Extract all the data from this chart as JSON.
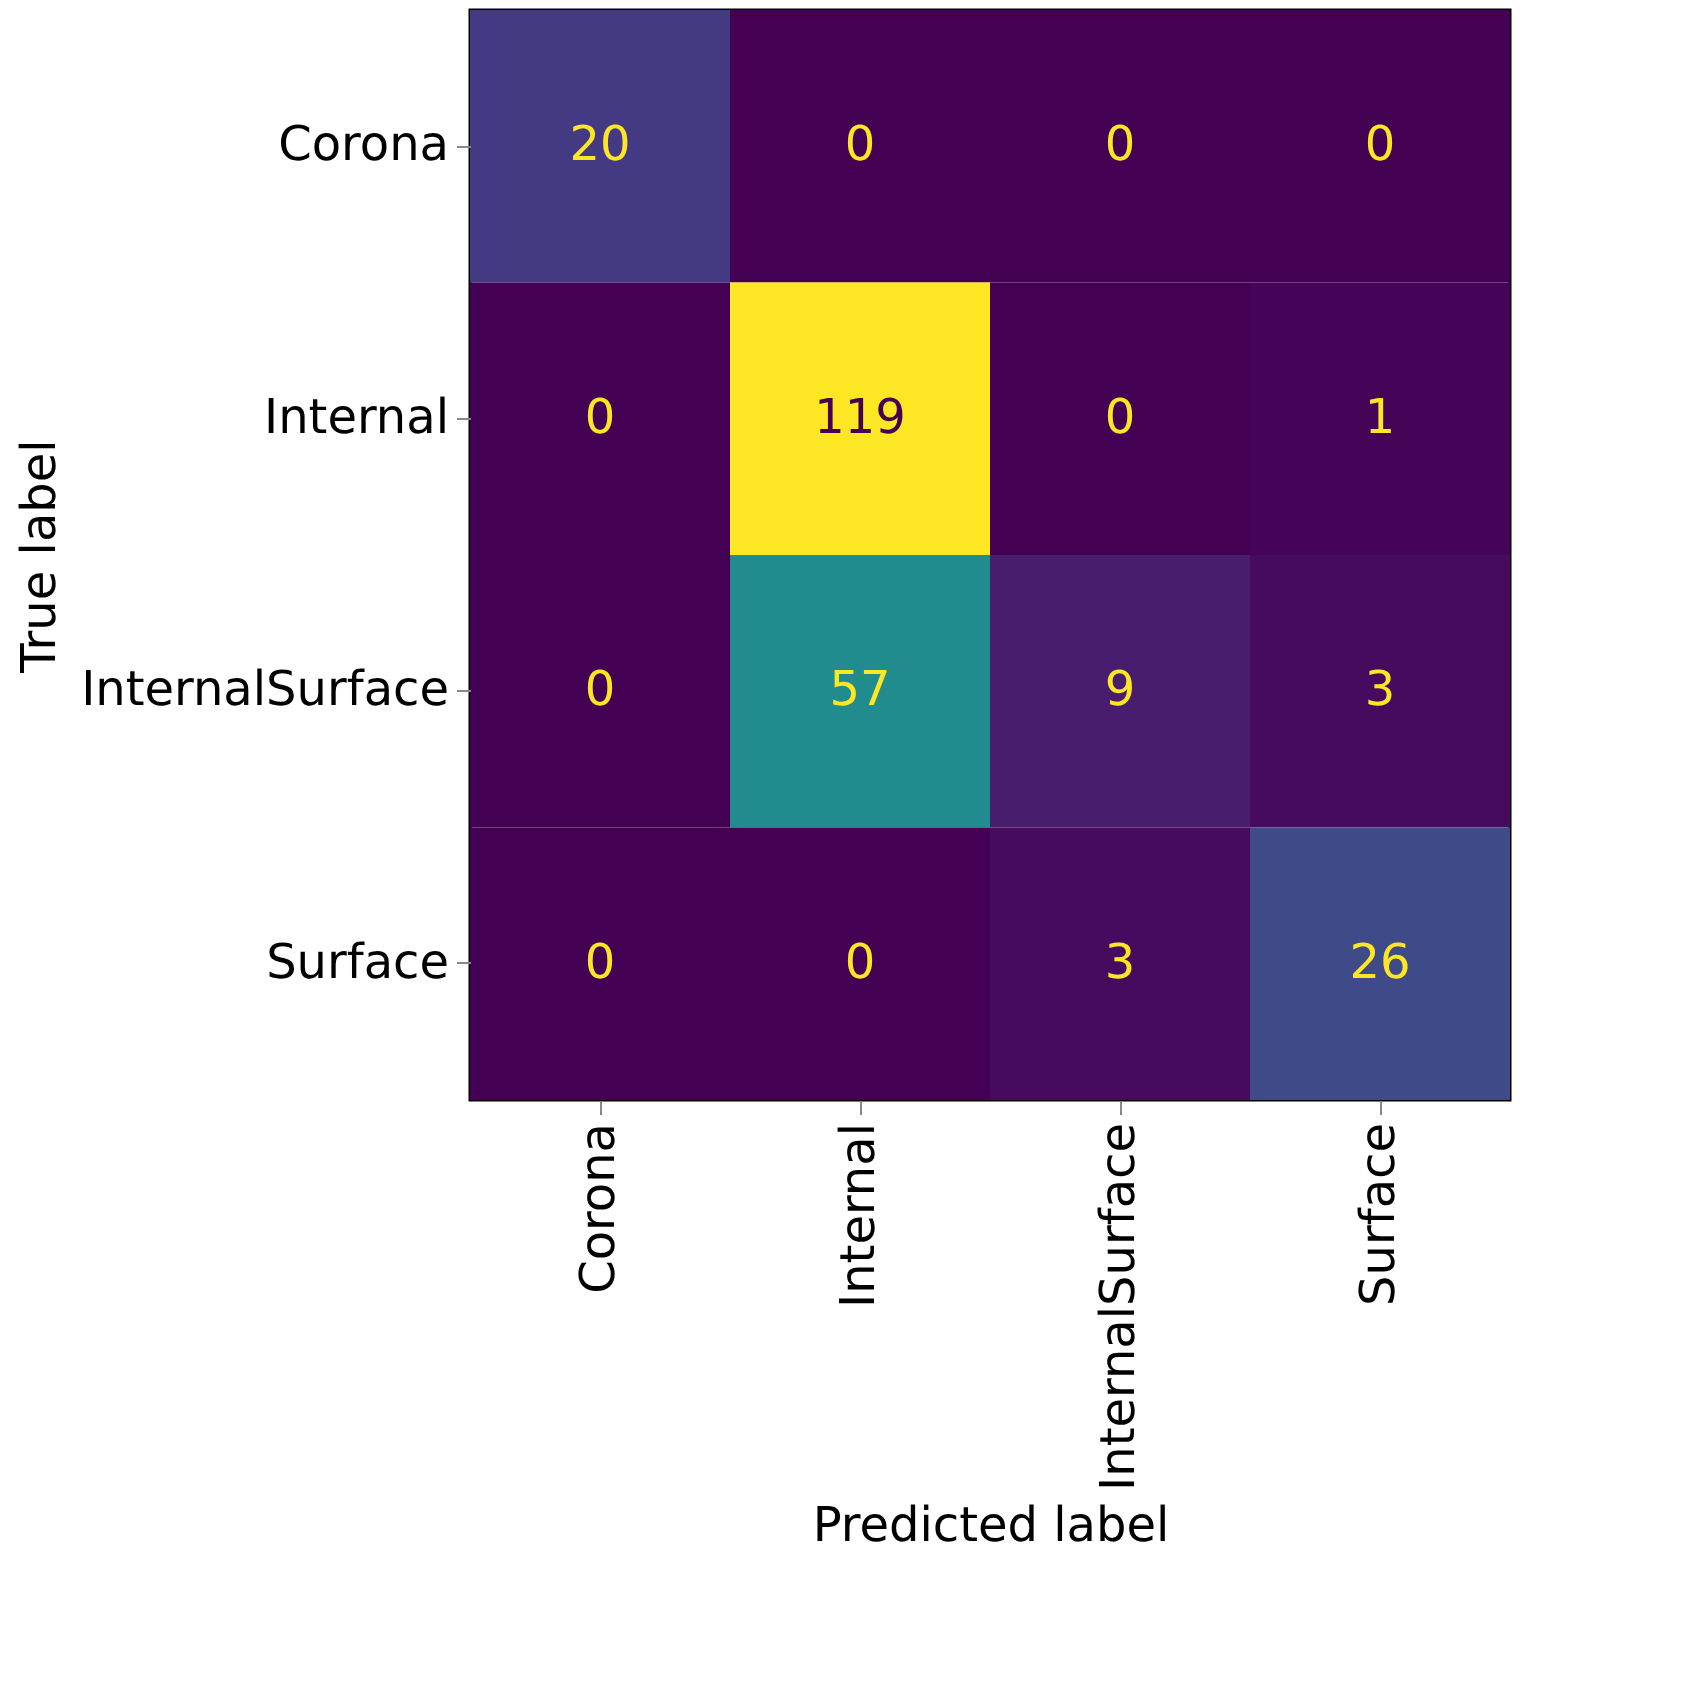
{
  "chart_data": {
    "type": "heatmap",
    "categories": [
      "Corona",
      "Internal",
      "InternalSurface",
      "Surface"
    ],
    "y_categories": [
      "Corona",
      "Internal",
      "InternalSurface",
      "Surface"
    ],
    "cells": [
      [
        20,
        0,
        0,
        0
      ],
      [
        0,
        119,
        0,
        1
      ],
      [
        0,
        57,
        9,
        3
      ],
      [
        0,
        0,
        3,
        26
      ]
    ],
    "data_labels": true,
    "xlabel": "Predicted label",
    "ylabel": "True label"
  }
}
